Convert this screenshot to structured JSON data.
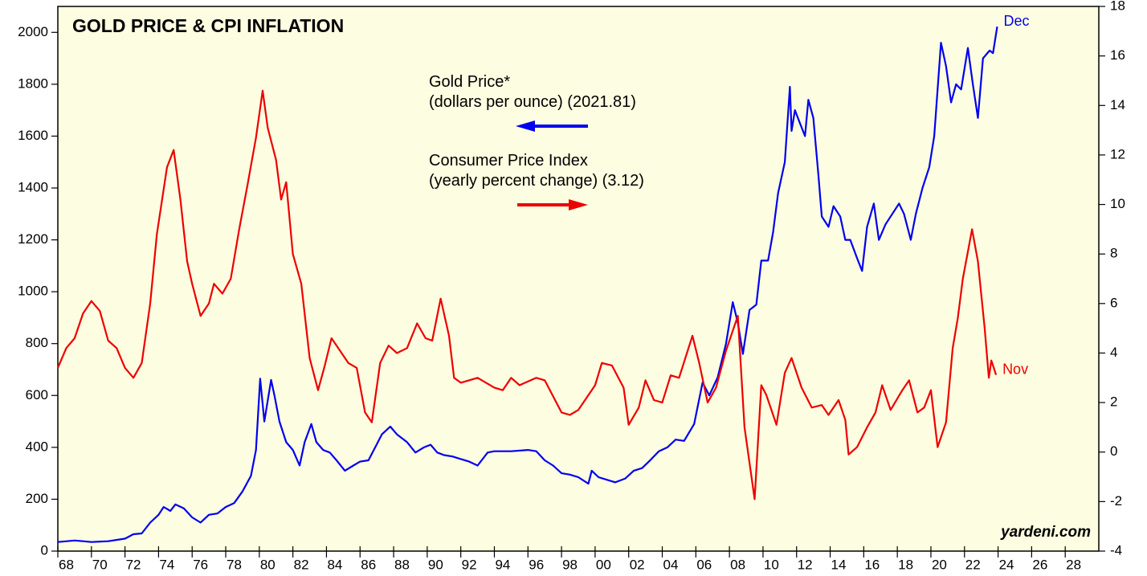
{
  "chart_data": {
    "type": "line",
    "title": "GOLD PRICE & CPI INFLATION",
    "source": "yardeni.com",
    "background": "#fdfde1",
    "xlim": [
      1968,
      2030
    ],
    "xticks": [
      {
        "value": 1968,
        "label": "68"
      },
      {
        "value": 1970,
        "label": "70"
      },
      {
        "value": 1972,
        "label": "72"
      },
      {
        "value": 1974,
        "label": "74"
      },
      {
        "value": 1976,
        "label": "76"
      },
      {
        "value": 1978,
        "label": "78"
      },
      {
        "value": 1980,
        "label": "80"
      },
      {
        "value": 1982,
        "label": "82"
      },
      {
        "value": 1984,
        "label": "84"
      },
      {
        "value": 1986,
        "label": "86"
      },
      {
        "value": 1988,
        "label": "88"
      },
      {
        "value": 1990,
        "label": "90"
      },
      {
        "value": 1992,
        "label": "92"
      },
      {
        "value": 1994,
        "label": "94"
      },
      {
        "value": 1996,
        "label": "96"
      },
      {
        "value": 1998,
        "label": "98"
      },
      {
        "value": 2000,
        "label": "00"
      },
      {
        "value": 2002,
        "label": "02"
      },
      {
        "value": 2004,
        "label": "04"
      },
      {
        "value": 2006,
        "label": "06"
      },
      {
        "value": 2008,
        "label": "08"
      },
      {
        "value": 2010,
        "label": "10"
      },
      {
        "value": 2012,
        "label": "12"
      },
      {
        "value": 2014,
        "label": "14"
      },
      {
        "value": 2016,
        "label": "16"
      },
      {
        "value": 2018,
        "label": "18"
      },
      {
        "value": 2020,
        "label": "20"
      },
      {
        "value": 2022,
        "label": "22"
      },
      {
        "value": 2024,
        "label": "24"
      },
      {
        "value": 2026,
        "label": "26"
      },
      {
        "value": 2028,
        "label": "28"
      }
    ],
    "ylim": [
      0,
      2100
    ],
    "yticks": [
      0,
      200,
      400,
      600,
      800,
      1000,
      1200,
      1400,
      1600,
      1800,
      2000
    ],
    "y2lim": [
      -4,
      18
    ],
    "y2ticks": [
      -4,
      -2,
      0,
      2,
      4,
      6,
      8,
      10,
      12,
      14,
      16,
      18
    ],
    "series": [
      {
        "name": "Gold Price*",
        "note": "(dollars per ounce) (2021.81)",
        "end_label": "Dec",
        "color": "#0000ee",
        "axis": "y",
        "x": [
          1968.0,
          1969,
          1969.5,
          1970,
          1971,
          1972,
          1972.5,
          1973,
          1973.5,
          1974,
          1974.3,
          1974.7,
          1975,
          1975.5,
          1976,
          1976.5,
          1977,
          1977.5,
          1978,
          1978.5,
          1979,
          1979.5,
          1979.8,
          1980.05,
          1980.3,
          1980.7,
          1980.9,
          1981.2,
          1981.6,
          1982,
          1982.4,
          1982.7,
          1983.1,
          1983.4,
          1983.8,
          1984.2,
          1984.6,
          1985.1,
          1985.6,
          1986,
          1986.5,
          1986.9,
          1987.3,
          1987.8,
          1988.2,
          1988.8,
          1989.3,
          1989.8,
          1990.2,
          1990.6,
          1991,
          1991.5,
          1992,
          1992.5,
          1993,
          1993.6,
          1994,
          1995,
          1996,
          1996.5,
          1997,
          1997.5,
          1998,
          1998.5,
          1999,
          1999.6,
          1999.8,
          2000.2,
          2000.7,
          2001.2,
          2001.8,
          2002.3,
          2002.8,
          2003.2,
          2003.8,
          2004.3,
          2004.8,
          2005.3,
          2005.9,
          2006.4,
          2006.8,
          2007.3,
          2007.8,
          2008.2,
          2008.5,
          2008.8,
          2009.2,
          2009.6,
          2009.9,
          2010.3,
          2010.6,
          2010.9,
          2011.3,
          2011.6,
          2011.7,
          2011.9,
          2012.2,
          2012.5,
          2012.7,
          2013,
          2013.3,
          2013.5,
          2013.9,
          2014.2,
          2014.6,
          2014.9,
          2015.2,
          2015.6,
          2015.9,
          2016.2,
          2016.6,
          2016.9,
          2017.3,
          2017.7,
          2018.1,
          2018.4,
          2018.8,
          2019.1,
          2019.5,
          2019.9,
          2020.2,
          2020.6,
          2020.9,
          2021.2,
          2021.5,
          2021.8,
          2022.2,
          2022.5,
          2022.8,
          2023.1,
          2023.5,
          2023.7,
          2023.95
        ],
        "values": [
          35,
          41,
          38,
          35,
          38,
          48,
          65,
          68,
          110,
          140,
          170,
          155,
          180,
          165,
          130,
          110,
          140,
          145,
          170,
          185,
          230,
          290,
          390,
          665,
          500,
          660,
          600,
          500,
          420,
          390,
          330,
          420,
          490,
          420,
          390,
          380,
          350,
          310,
          330,
          345,
          350,
          400,
          450,
          480,
          450,
          420,
          380,
          400,
          410,
          380,
          370,
          365,
          355,
          345,
          330,
          380,
          385,
          385,
          390,
          385,
          350,
          330,
          300,
          295,
          285,
          260,
          310,
          285,
          275,
          265,
          280,
          310,
          320,
          345,
          385,
          400,
          430,
          425,
          490,
          650,
          600,
          670,
          800,
          960,
          880,
          760,
          930,
          950,
          1120,
          1120,
          1230,
          1380,
          1500,
          1790,
          1620,
          1700,
          1650,
          1600,
          1740,
          1670,
          1450,
          1290,
          1250,
          1330,
          1290,
          1200,
          1200,
          1130,
          1080,
          1250,
          1340,
          1200,
          1260,
          1300,
          1340,
          1300,
          1200,
          1300,
          1400,
          1480,
          1600,
          1960,
          1870,
          1730,
          1800,
          1780,
          1940,
          1800,
          1670,
          1900,
          1930,
          1920,
          2021.81
        ]
      },
      {
        "name": "Consumer Price Index",
        "note": "(yearly percent change) (3.12)",
        "end_label": "Nov",
        "color": "#ee0000",
        "axis": "y2",
        "x": [
          1968,
          1968.5,
          1969,
          1969.5,
          1970,
          1970.5,
          1971,
          1971.5,
          1972,
          1972.5,
          1973,
          1973.5,
          1973.9,
          1974.5,
          1974.9,
          1975.3,
          1975.7,
          1976,
          1976.5,
          1977,
          1977.3,
          1977.8,
          1978.3,
          1978.8,
          1979.3,
          1979.8,
          1980.2,
          1980.5,
          1981,
          1981.3,
          1981.6,
          1982,
          1982.5,
          1983,
          1983.5,
          1983.9,
          1984.3,
          1984.8,
          1985.3,
          1985.8,
          1986.3,
          1986.7,
          1987.2,
          1987.7,
          1988.2,
          1988.8,
          1989.4,
          1989.9,
          1990.3,
          1990.8,
          1991.3,
          1991.6,
          1992,
          1993,
          1994,
          1994.5,
          1995,
          1995.5,
          1996.5,
          1997,
          1998,
          1998.5,
          1999,
          1999.5,
          2000,
          2000.4,
          2001,
          2001.7,
          2002,
          2002.6,
          2003,
          2003.5,
          2004,
          2004.5,
          2005,
          2005.8,
          2006.2,
          2006.7,
          2007.2,
          2007.8,
          2008.5,
          2008.9,
          2009.5,
          2009.9,
          2010.2,
          2010.8,
          2011.3,
          2011.7,
          2012.3,
          2012.9,
          2013.5,
          2013.9,
          2014.5,
          2014.9,
          2015.1,
          2015.6,
          2016.2,
          2016.7,
          2017.1,
          2017.6,
          2018.3,
          2018.7,
          2019.2,
          2019.6,
          2020.0,
          2020.4,
          2020.9,
          2021.3,
          2021.6,
          2021.9,
          2022.45,
          2022.8,
          2023.2,
          2023.45,
          2023.6,
          2023.88
        ],
        "values": [
          3.4,
          4.2,
          4.6,
          5.6,
          6.1,
          5.7,
          4.5,
          4.2,
          3.4,
          3.0,
          3.6,
          6,
          8.8,
          11.5,
          12.2,
          10.2,
          7.7,
          6.8,
          5.5,
          6,
          6.8,
          6.4,
          7,
          9,
          10.8,
          12.7,
          14.6,
          13.1,
          11.8,
          10.2,
          10.9,
          8,
          6.8,
          3.8,
          2.5,
          3.5,
          4.6,
          4.1,
          3.6,
          3.4,
          1.6,
          1.2,
          3.6,
          4.3,
          4.0,
          4.2,
          5.2,
          4.6,
          4.5,
          6.2,
          4.7,
          3.0,
          2.8,
          3.0,
          2.6,
          2.5,
          3.0,
          2.7,
          3.0,
          2.9,
          1.6,
          1.5,
          1.7,
          2.2,
          2.7,
          3.6,
          3.5,
          2.6,
          1.1,
          1.8,
          2.9,
          2.1,
          2.0,
          3.1,
          3.0,
          4.7,
          3.6,
          2.0,
          2.6,
          4.1,
          5.5,
          1.0,
          -1.9,
          2.7,
          2.3,
          1.1,
          3.2,
          3.8,
          2.6,
          1.8,
          1.9,
          1.5,
          2.1,
          1.3,
          -0.1,
          0.2,
          1.0,
          1.6,
          2.7,
          1.7,
          2.5,
          2.9,
          1.6,
          1.8,
          2.5,
          0.2,
          1.2,
          4.2,
          5.4,
          7.0,
          9.0,
          7.7,
          5.0,
          3.0,
          3.7,
          3.12
        ]
      }
    ]
  }
}
